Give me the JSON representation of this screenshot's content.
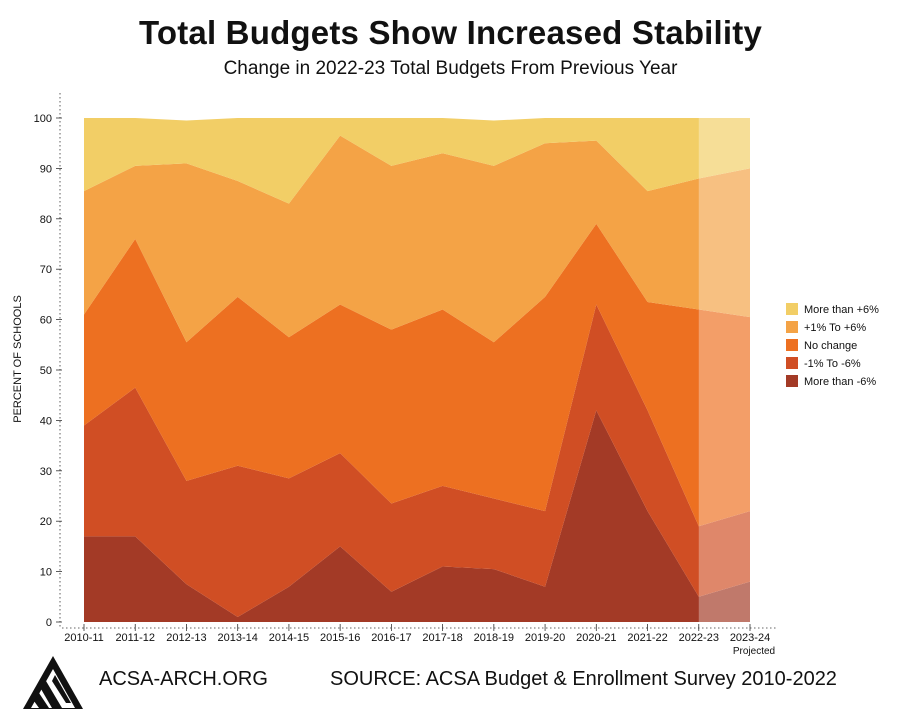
{
  "title": "Total Budgets Show Increased Stability",
  "subtitle": "Change in 2022-23 Total Budgets From Previous Year",
  "footer": {
    "site": "ACSA-ARCH.ORG",
    "source": "SOURCE: ACSA Budget & Enrollment Survey 2010-2022"
  },
  "chart_data": {
    "type": "area",
    "stacked": true,
    "title": "Total Budgets Show Increased Stability",
    "subtitle": "Change in 2022-23 Total Budgets From Previous Year",
    "xlabel": "",
    "ylabel": "PERCENT OF SCHOOLS",
    "ylim": [
      0,
      100
    ],
    "yticks": [
      0,
      10,
      20,
      30,
      40,
      50,
      60,
      70,
      80,
      90,
      100
    ],
    "categories": [
      "2010-11",
      "2011-12",
      "2012-13",
      "2013-14",
      "2014-15",
      "2015-16",
      "2016-17",
      "2017-18",
      "2018-19",
      "2019-20",
      "2020-21",
      "2021-22",
      "2022-23",
      "2023-24"
    ],
    "projected_note": "Projected",
    "projected_from": "2022-23",
    "legend_position": "right",
    "series": [
      {
        "name": "More than -6%",
        "color": "#a33a26",
        "values": [
          17,
          17,
          7.5,
          1,
          7,
          15,
          6,
          11,
          10.5,
          7,
          42,
          22,
          5,
          8
        ]
      },
      {
        "name": "-1% To -6%",
        "color": "#d04e24",
        "values": [
          22,
          29.5,
          20.5,
          30,
          21.5,
          18.5,
          17.5,
          16,
          14,
          15,
          21,
          20,
          14,
          14
        ]
      },
      {
        "name": "No change",
        "color": "#ed7021",
        "values": [
          22,
          29.5,
          27.5,
          33.5,
          28,
          29.5,
          34.5,
          35,
          31,
          42.5,
          16,
          21.5,
          43,
          38.5
        ]
      },
      {
        "name": "+1% To +6%",
        "color": "#f4a346",
        "values": [
          24.5,
          14.5,
          35.5,
          23,
          26.5,
          33.5,
          32.5,
          31,
          35,
          30.5,
          16.5,
          22,
          26,
          29.5
        ]
      },
      {
        "name": "More than +6%",
        "color": "#f2ce66",
        "values": [
          14.5,
          9.5,
          8.5,
          12.5,
          17,
          3.5,
          9.5,
          7,
          9,
          5,
          4.5,
          14.5,
          12,
          10
        ]
      }
    ]
  }
}
